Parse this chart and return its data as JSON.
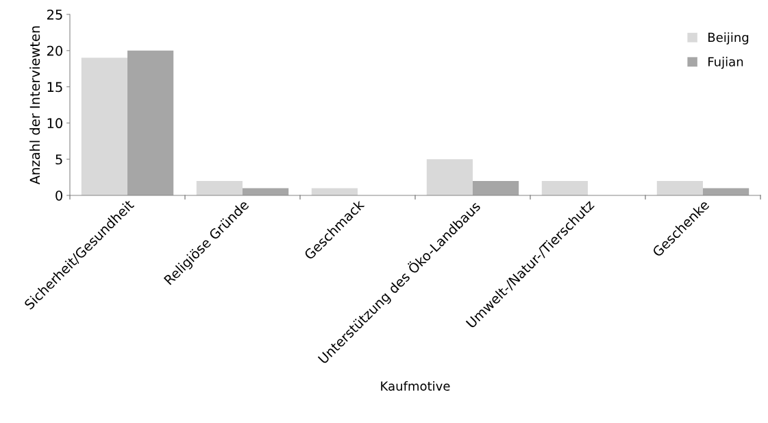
{
  "chart_data": {
    "type": "bar",
    "xlabel": "Kaufmotive",
    "ylabel": "Anzahl der Interviewten",
    "categories": [
      "Sicherheit/Gesundheit",
      "Religiöse Gründe",
      "Geschmack",
      "Unterstützung des Öko-Landbaus",
      "Umwelt-/Natur-/Tierschutz",
      "Geschenke"
    ],
    "series": [
      {
        "name": "Beijing",
        "color": "#d9d9d9",
        "values": [
          19,
          2,
          1,
          5,
          2,
          2
        ]
      },
      {
        "name": "Fujian",
        "color": "#a6a6a6",
        "values": [
          20,
          1,
          0,
          2,
          0,
          1
        ]
      }
    ],
    "ylim": [
      0,
      25
    ],
    "yticks": [
      0,
      5,
      10,
      15,
      20,
      25
    ],
    "grid": false,
    "legend": "right"
  }
}
